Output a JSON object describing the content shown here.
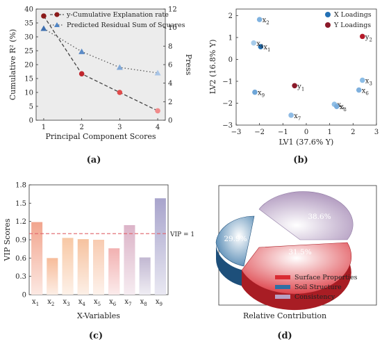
{
  "chart_data": [
    {
      "panel": "(a)",
      "type": "line",
      "xlabel": "Principal Component Scores",
      "ylabel_left": "Cumulative R² (%)",
      "ylabel_right": "Press",
      "x": [
        1,
        2,
        3,
        4
      ],
      "xlim": [
        0.8,
        4.2
      ],
      "ylim_left": [
        0,
        40
      ],
      "ylim_right": [
        0,
        12
      ],
      "x_ticks": [
        "1",
        "2",
        "3",
        "4"
      ],
      "y_left_ticks": [
        "0",
        "5",
        "10",
        "15",
        "20",
        "25",
        "30",
        "35",
        "40"
      ],
      "y_right_ticks": [
        "0",
        "2",
        "4",
        "6",
        "8",
        "10",
        "12"
      ],
      "series": [
        {
          "name": "y-Cumulative Explanation rate",
          "axis": "left",
          "values": [
            37.5,
            16.7,
            10.0,
            3.4
          ],
          "color": "#8b1a1a"
        },
        {
          "name": "Predicted Residual Sum of Squares",
          "axis": "right",
          "values": [
            9.9,
            7.4,
            5.7,
            5.1
          ],
          "color": "#4f84c4"
        }
      ]
    },
    {
      "panel": "(b)",
      "type": "scatter",
      "xlabel": "LV1 (37.6% Y)",
      "ylabel": "LV2 (16.8% Y)",
      "xlim": [
        -3,
        3
      ],
      "ylim": [
        -3,
        2.3
      ],
      "x_ticks": [
        "−3",
        "−2",
        "−1",
        "0",
        "1",
        "2",
        "3"
      ],
      "y_ticks": [
        "−3",
        "−2",
        "−1",
        "0",
        "1",
        "2"
      ],
      "legend": [
        "X Loadings",
        "Y Loadings"
      ],
      "x_loadings": [
        {
          "label": "x",
          "sub": "1",
          "x": -1.95,
          "y": 0.58
        },
        {
          "label": "x",
          "sub": "2",
          "x": -2.0,
          "y": 1.82
        },
        {
          "label": "x",
          "sub": "3",
          "x": 2.4,
          "y": -0.95
        },
        {
          "label": "x",
          "sub": "4",
          "x": -2.25,
          "y": 0.75
        },
        {
          "label": "x",
          "sub": "5",
          "x": 1.2,
          "y": -2.05
        },
        {
          "label": "x",
          "sub": "6",
          "x": 2.25,
          "y": -1.4
        },
        {
          "label": "x",
          "sub": "7",
          "x": -0.65,
          "y": -2.55
        },
        {
          "label": "x",
          "sub": "8",
          "x": 1.3,
          "y": -2.15
        },
        {
          "label": "x",
          "sub": "9",
          "x": -2.2,
          "y": -1.5
        }
      ],
      "y_loadings": [
        {
          "label": "y",
          "sub": "1",
          "x": -0.5,
          "y": -1.2
        },
        {
          "label": "y",
          "sub": "2",
          "x": 2.4,
          "y": 1.05
        }
      ]
    },
    {
      "panel": "(c)",
      "type": "bar",
      "xlabel": "X-Variables",
      "ylabel": "VIP Scores",
      "ylim": [
        0,
        1.8
      ],
      "y_ticks": [
        "0",
        "0.3",
        "0.6",
        "0.9",
        "1.2",
        "1.5",
        "1.8"
      ],
      "categories": [
        "x1",
        "x2",
        "x3",
        "x4",
        "x5",
        "x6",
        "x7",
        "x8",
        "x9"
      ],
      "values": [
        1.19,
        0.6,
        0.93,
        0.91,
        0.9,
        0.76,
        1.14,
        0.61,
        1.58
      ],
      "colors": [
        "#f2a58e",
        "#f7bc9a",
        "#f8c8a5",
        "#f6c29f",
        "#f8cbb1",
        "#f2b1b1",
        "#dcb4c8",
        "#c2b8d2",
        "#a8a4cc"
      ],
      "reference_line": {
        "value": 1,
        "label": "VIP = 1"
      }
    },
    {
      "panel": "(d)",
      "type": "pie",
      "title": "Relative Contribution",
      "slices": [
        {
          "name": "Consistency",
          "value": 38.6,
          "label": "38.6%",
          "color": "#b8a1c4"
        },
        {
          "name": "Soil Structure",
          "value": 29.9,
          "label": "29.9%",
          "color": "#2f6fa3"
        },
        {
          "name": "Surface Properties",
          "value": 31.5,
          "label": "31.5%",
          "color": "#d92b33"
        }
      ]
    }
  ]
}
